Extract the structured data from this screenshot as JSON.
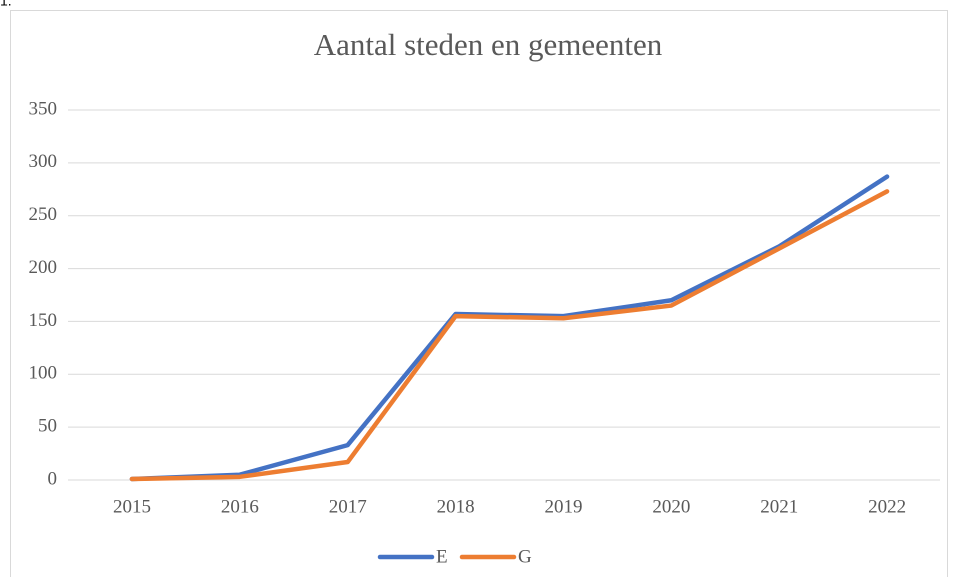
{
  "caption": "1.",
  "chart_data": {
    "type": "line",
    "title": "Aantal steden en gemeenten",
    "categories": [
      "2015",
      "2016",
      "2017",
      "2018",
      "2019",
      "2020",
      "2021",
      "2022"
    ],
    "series": [
      {
        "name": "E",
        "color": "#4472c4",
        "values": [
          1,
          5,
          33,
          157,
          155,
          170,
          221,
          287
        ]
      },
      {
        "name": "G",
        "color": "#ed7d31",
        "values": [
          1,
          3,
          17,
          155,
          153,
          165,
          219,
          273
        ]
      }
    ],
    "ylim": [
      0,
      350
    ],
    "yticks": [
      0,
      50,
      100,
      150,
      200,
      250,
      300,
      350
    ],
    "grid": true,
    "legend": "bottom"
  }
}
